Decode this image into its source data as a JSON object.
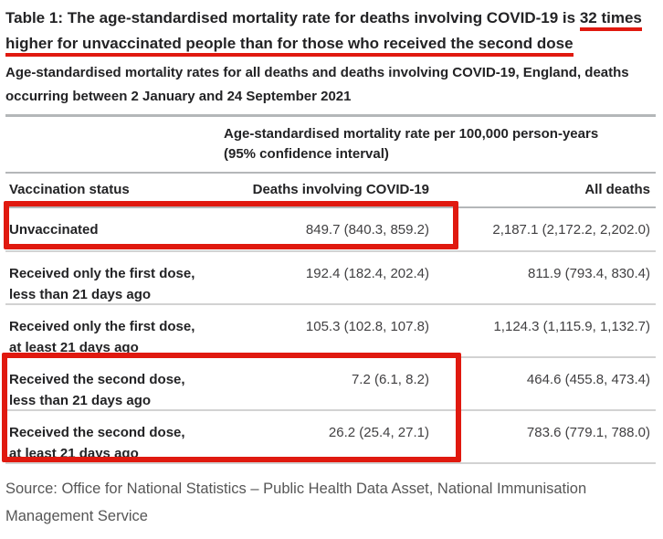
{
  "page": {
    "title_prefix": "Table 1: The age-standardised mortality rate for deaths involving COVID-19 is ",
    "title_highlight_1": "32 times",
    "title_highlight_2": "higher for unvaccinated people than for those who received the second dose",
    "subtitle": "Age-standardised mortality rates for all deaths and deaths involving COVID-19, England, deaths occurring between 2 January and 24 September 2021",
    "source_line": "Source: Office for National Statistics – Public Health Data Asset, National Immunisation Management Service"
  },
  "table": {
    "value_header": "Age-standardised mortality rate per 100,000 person-years\n(95% confidence interval)",
    "columns": {
      "status": "Vaccination status",
      "covid": "Deaths involving COVID-19",
      "all": "All deaths"
    },
    "rows": [
      {
        "status": "Unvaccinated",
        "covid": "849.7 (840.3, 859.2)",
        "all": "2,187.1 (2,172.2, 2,202.0)"
      },
      {
        "status": "Received only the first dose,\nless than 21 days ago",
        "covid": "192.4 (182.4, 202.4)",
        "all": "811.9 (793.4, 830.4)"
      },
      {
        "status": "Received only the first dose,\nat least 21 days ago",
        "covid": "105.3 (102.8, 107.8)",
        "all": "1,124.3 (1,115.9, 1,132.7)"
      },
      {
        "status": "Received the second dose,\nless than 21 days ago",
        "covid": "7.2 (6.1, 8.2)",
        "all": "464.6 (455.8, 473.4)"
      },
      {
        "status": "Received the second dose,\nat least 21 days ago",
        "covid": "26.2 (25.4, 27.1)",
        "all": "783.6 (779.1, 788.0)"
      }
    ]
  },
  "annotations": {
    "highlight_color": "#e0190f",
    "underlined_text": [
      "32 times",
      "higher for unvaccinated people than for those who received the second dose"
    ],
    "boxed_cells": [
      "Unvaccinated — 849.7 (840.3, 859.2)",
      "Received the second dose rows — 7.2 (6.1, 8.2) and 26.2 (25.4, 27.1)"
    ]
  },
  "colors": {
    "annotation_red": "#e0190f",
    "text_dark": "#232325",
    "text_numbers": "#414042",
    "text_source": "#565656",
    "rule_gray": "#b4b7b9",
    "divider_gray": "#d2d2d2",
    "background": "#ffffff"
  }
}
